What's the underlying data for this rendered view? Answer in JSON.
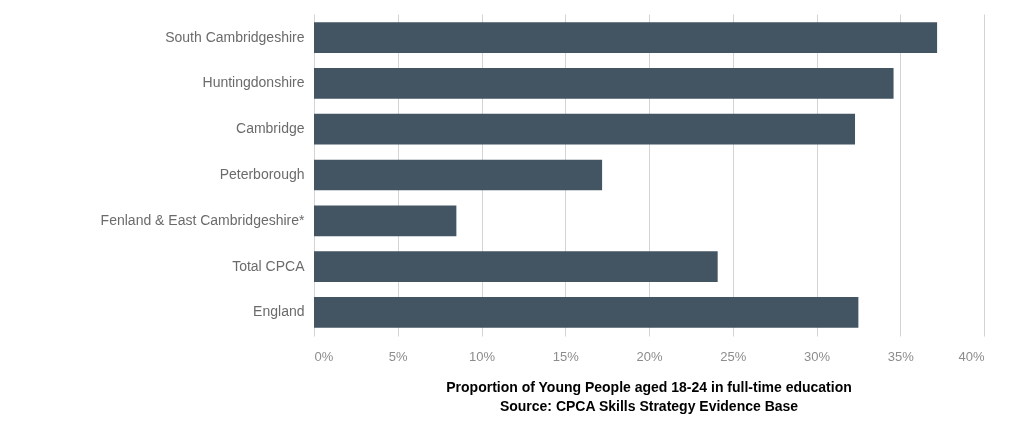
{
  "chart_data": {
    "type": "bar",
    "orientation": "horizontal",
    "title": "Proportion of Young People aged 18-24 in full-time education",
    "annotations": [
      "Source: CPCA Skills Strategy Evidence Base"
    ],
    "categories": [
      "South Cambridgeshire",
      "Huntingdonshire",
      "Cambridge",
      "Peterborough",
      "Fenland & East Cambridgeshire*",
      "Total CPCA",
      "England"
    ],
    "values": [
      37.2,
      34.6,
      32.3,
      17.2,
      8.5,
      24.1,
      32.5
    ],
    "color": "#435562",
    "xlim": [
      0,
      40
    ],
    "xticks": [
      {
        "value": 0,
        "label": "0%"
      },
      {
        "value": 5,
        "label": "5%"
      },
      {
        "value": 10,
        "label": "10%"
      },
      {
        "value": 15,
        "label": "15%"
      },
      {
        "value": 20,
        "label": "20%"
      },
      {
        "value": 25,
        "label": "25%"
      },
      {
        "value": 30,
        "label": "30%"
      },
      {
        "value": 35,
        "label": "35%"
      },
      {
        "value": 40,
        "label": "40%"
      }
    ],
    "grid": "x"
  }
}
